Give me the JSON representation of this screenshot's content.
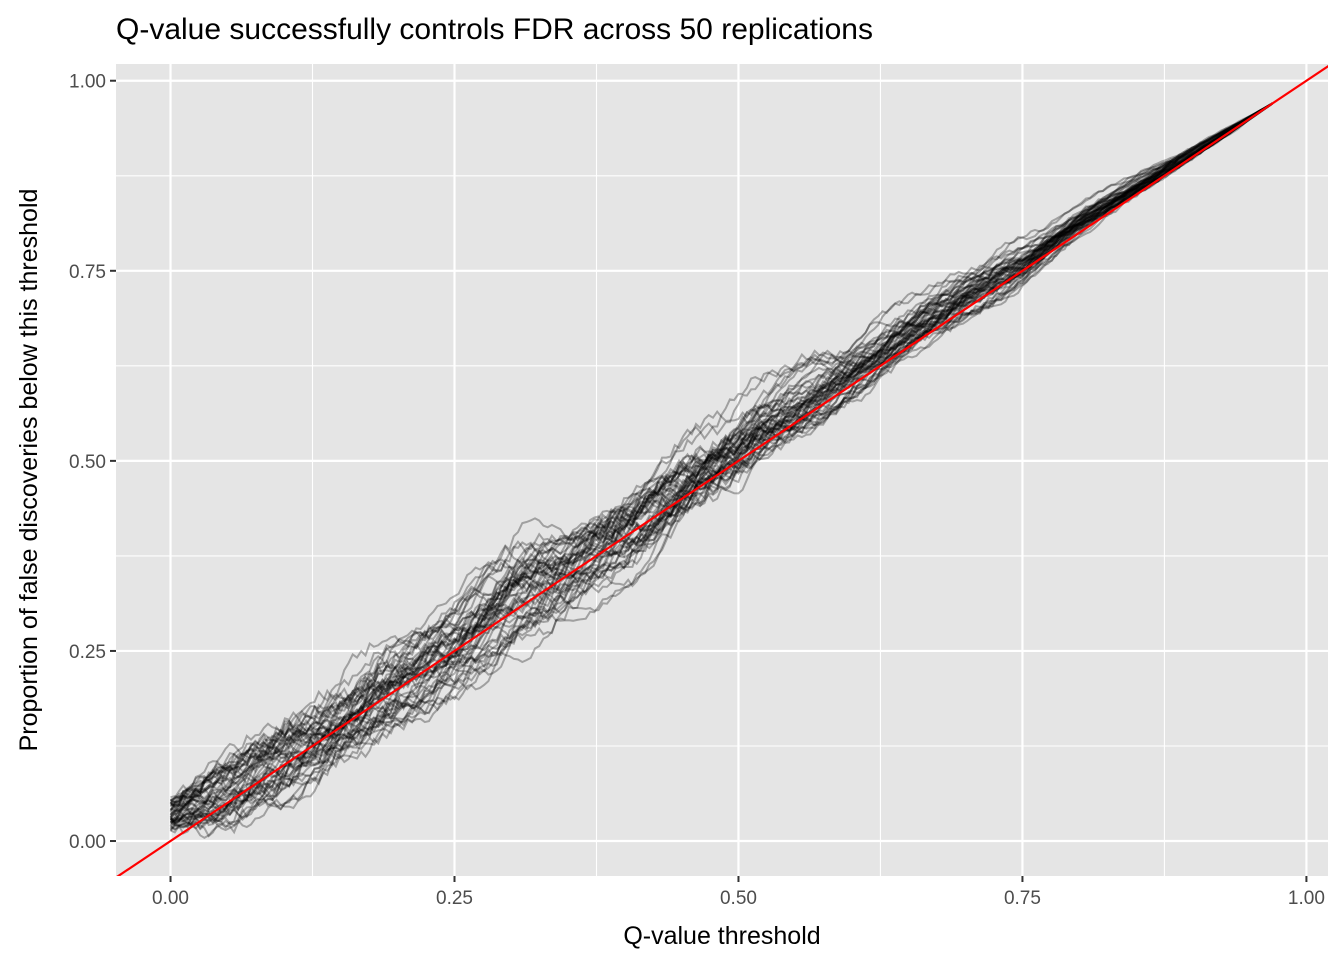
{
  "chart_data": {
    "type": "line",
    "title": "Q-value successfully controls FDR across 50 replications",
    "xlabel": "Q-value threshold",
    "ylabel": "Proportion of false discoveries below this threshold",
    "xlim": [
      -0.048,
      1.019
    ],
    "ylim": [
      -0.046,
      1.022
    ],
    "x_ticks": [
      "0.00",
      "0.25",
      "0.50",
      "0.75",
      "1.00"
    ],
    "x_tick_values": [
      0,
      0.25,
      0.5,
      0.75,
      1.0
    ],
    "y_ticks": [
      "0.00",
      "0.25",
      "0.50",
      "0.75",
      "1.00"
    ],
    "y_tick_values": [
      0,
      0.25,
      0.5,
      0.75,
      1.0
    ],
    "grid": true,
    "n_replications": 50,
    "replication_color": "#000000",
    "replication_opacity": 0.3,
    "replication_envelope": {
      "x": [
        0,
        0.05,
        0.1,
        0.15,
        0.2,
        0.25,
        0.3,
        0.35,
        0.4,
        0.45,
        0.5,
        0.55,
        0.6,
        0.65,
        0.7,
        0.75,
        0.8,
        0.85,
        0.9,
        0.97
      ],
      "lo": [
        0,
        0.0,
        0.03,
        0.08,
        0.13,
        0.17,
        0.22,
        0.28,
        0.33,
        0.39,
        0.44,
        0.5,
        0.56,
        0.62,
        0.67,
        0.72,
        0.79,
        0.84,
        0.89,
        0.97
      ],
      "hi": [
        0.07,
        0.14,
        0.19,
        0.24,
        0.29,
        0.33,
        0.41,
        0.44,
        0.5,
        0.56,
        0.6,
        0.64,
        0.67,
        0.72,
        0.77,
        0.8,
        0.84,
        0.88,
        0.92,
        0.97
      ]
    },
    "reference_line": {
      "type": "identity",
      "slope": 1,
      "intercept": 0,
      "color": "#ff0000"
    }
  }
}
